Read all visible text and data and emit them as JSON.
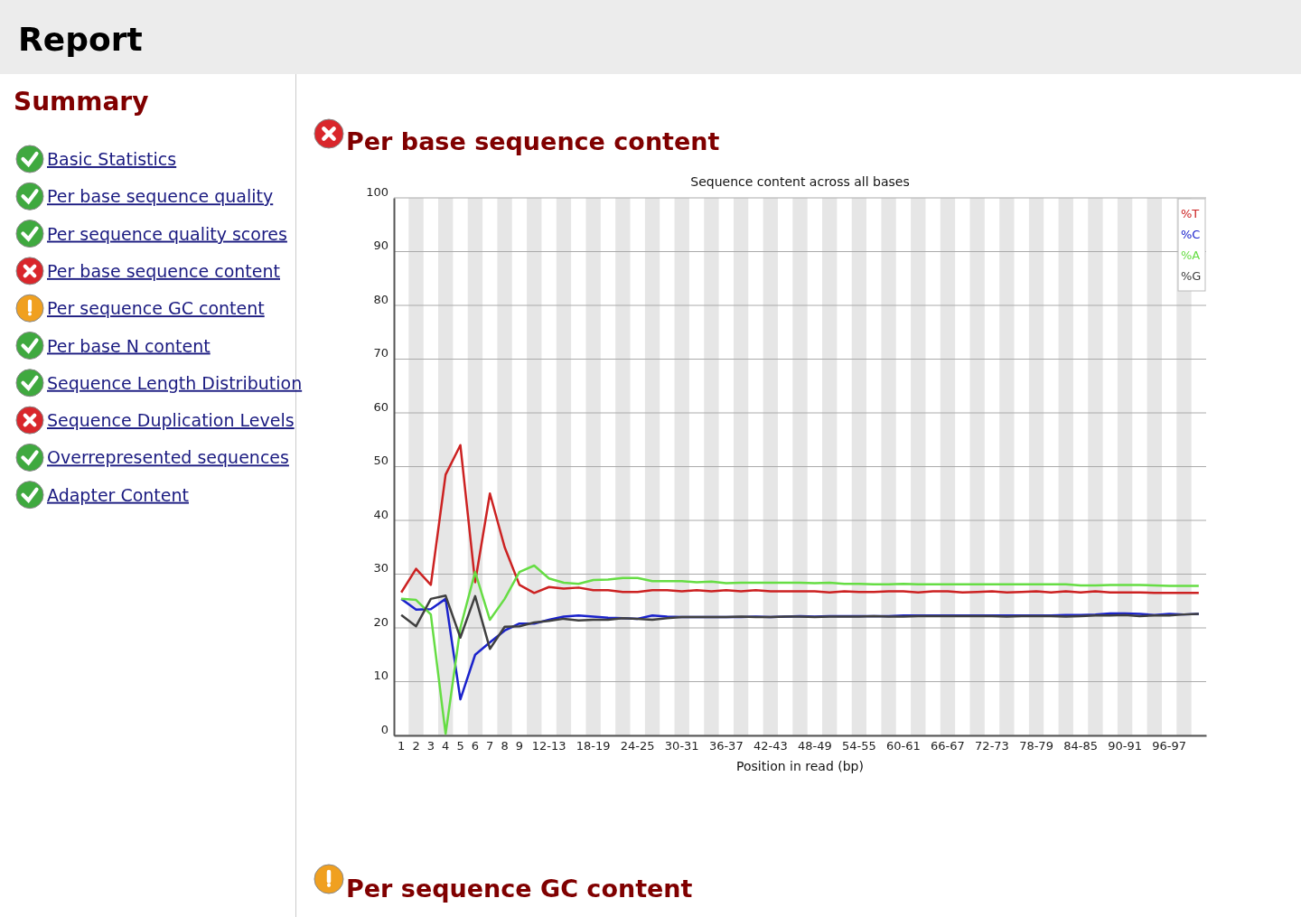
{
  "chart_data": {
    "type": "line",
    "title": "Per base sequence content",
    "subtitle": "Sequence content across all bases",
    "xlabel": "Position in read (bp)",
    "categories": [
      "1",
      "2",
      "3",
      "4",
      "5",
      "6",
      "7",
      "8",
      "9",
      null,
      "12-13",
      null,
      null,
      "18-19",
      null,
      null,
      "24-25",
      null,
      null,
      "30-31",
      null,
      null,
      "36-37",
      null,
      null,
      "42-43",
      null,
      null,
      "48-49",
      null,
      null,
      "54-55",
      null,
      null,
      "60-61",
      null,
      null,
      "66-67",
      null,
      null,
      "72-73",
      null,
      null,
      "78-79",
      null,
      null,
      "84-85",
      null,
      null,
      "90-91",
      null,
      null,
      "96-97",
      null,
      null
    ],
    "series": [
      {
        "name": "%T",
        "color": "#cc2222",
        "values": [
          26.6,
          31,
          28,
          48.5,
          54,
          28.5,
          45,
          35,
          28,
          26.5,
          27.6,
          27.3,
          27.5,
          27,
          27,
          26.7,
          26.7,
          27,
          27,
          26.8,
          27,
          26.8,
          27,
          26.8,
          27,
          26.8,
          26.8,
          26.8,
          26.8,
          26.6,
          26.8,
          26.7,
          26.7,
          26.8,
          26.8,
          26.6,
          26.8,
          26.8,
          26.6,
          26.7,
          26.8,
          26.6,
          26.7,
          26.8,
          26.6,
          26.8,
          26.6,
          26.8,
          26.6,
          26.6,
          26.6,
          26.5,
          26.5,
          26.5,
          26.5
        ]
      },
      {
        "name": "%C",
        "color": "#1a22cc",
        "values": [
          25.4,
          23.4,
          23.5,
          25.4,
          6.7,
          15,
          17.3,
          19.5,
          20.8,
          20.8,
          21.5,
          22.1,
          22.3,
          22.1,
          21.9,
          21.8,
          21.7,
          22.3,
          22.1,
          22,
          22,
          22,
          22,
          22,
          22.1,
          22,
          22.1,
          22.2,
          22.1,
          22.2,
          22.2,
          22.2,
          22.2,
          22.2,
          22.3,
          22.3,
          22.3,
          22.3,
          22.3,
          22.3,
          22.3,
          22.3,
          22.3,
          22.3,
          22.3,
          22.4,
          22.4,
          22.5,
          22.7,
          22.7,
          22.6,
          22.4,
          22.6,
          22.5,
          22.6
        ]
      },
      {
        "name": "%A",
        "color": "#66dd44",
        "values": [
          25.4,
          25.2,
          22.5,
          0.3,
          20,
          30.4,
          21.5,
          25.4,
          30.4,
          31.6,
          29.2,
          28.4,
          28.2,
          28.9,
          29,
          29.3,
          29.3,
          28.7,
          28.7,
          28.7,
          28.5,
          28.6,
          28.3,
          28.4,
          28.4,
          28.4,
          28.4,
          28.4,
          28.3,
          28.4,
          28.2,
          28.2,
          28.1,
          28.1,
          28.2,
          28.1,
          28.1,
          28.1,
          28.1,
          28.1,
          28.1,
          28.1,
          28.1,
          28.1,
          28.1,
          28.1,
          27.9,
          27.9,
          28,
          28,
          28,
          27.9,
          27.8,
          27.8,
          27.8
        ]
      },
      {
        "name": "%G",
        "color": "#404040",
        "values": [
          22.4,
          20.3,
          25.4,
          26,
          18.2,
          25.9,
          16.1,
          20.2,
          20.3,
          21,
          21.3,
          21.7,
          21.4,
          21.5,
          21.5,
          21.8,
          21.7,
          21.5,
          21.8,
          22,
          22,
          22,
          22,
          22.1,
          22,
          22,
          22.1,
          22.1,
          22,
          22.1,
          22.1,
          22.1,
          22.2,
          22.1,
          22.1,
          22.2,
          22.2,
          22.2,
          22.2,
          22.2,
          22.2,
          22.1,
          22.2,
          22.2,
          22.2,
          22.1,
          22.2,
          22.3,
          22.3,
          22.4,
          22.2,
          22.3,
          22.3,
          22.5,
          22.6
        ]
      }
    ],
    "ylim": [
      0,
      100
    ],
    "yticks": [
      0,
      10,
      20,
      30,
      40,
      50,
      60,
      70,
      80,
      90,
      100
    ],
    "grid": "y",
    "legend": "top right",
    "marker": "none",
    "line_style": "solid",
    "annotations": [
      "Report",
      "Summary",
      "Basic Statistics",
      "Per base sequence quality",
      "Per sequence quality scores",
      "Per base sequence content",
      "Per sequence GC content",
      "Per base N content",
      "Sequence Length Distribution",
      "Sequence Duplication Levels",
      "Overrepresented sequences",
      "Adapter Content",
      "Per sequence GC content"
    ]
  }
}
